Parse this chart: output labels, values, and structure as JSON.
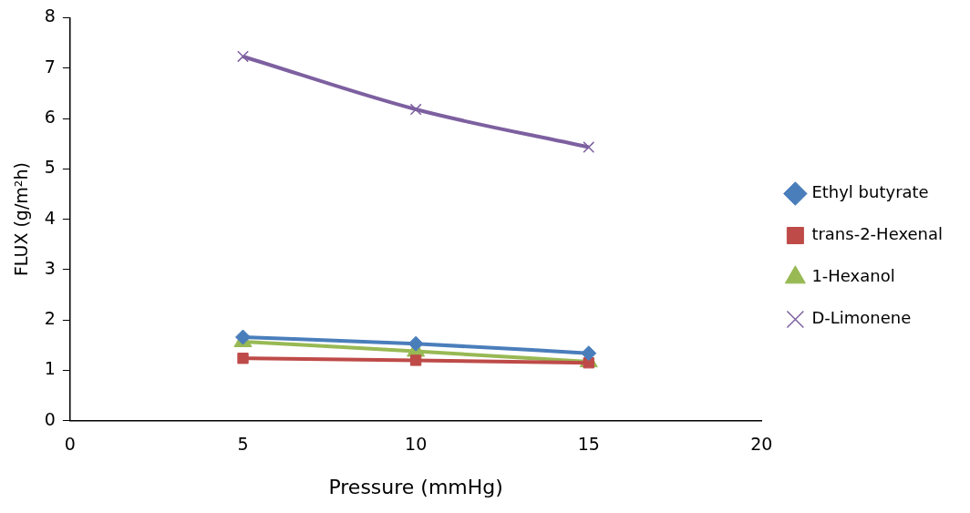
{
  "chart_data": {
    "type": "line",
    "xlabel": "Pressure (mmHg)",
    "ylabel": "FLUX (g/m²h)",
    "x": [
      5,
      10,
      15
    ],
    "xlim": [
      0,
      20
    ],
    "xticks": [
      0,
      5,
      10,
      15,
      20
    ],
    "ylim": [
      0,
      8
    ],
    "yticks": [
      0,
      1,
      2,
      3,
      4,
      5,
      6,
      7,
      8
    ],
    "grid": false,
    "legend": "right",
    "line_style": "solid",
    "series": [
      {
        "name": "Ethyl butyrate",
        "color": "#4a7ebb",
        "marker": "diamond",
        "values": [
          1.66,
          1.53,
          1.34
        ]
      },
      {
        "name": "trans-2-Hexenal",
        "color": "#be4b48",
        "marker": "square",
        "values": [
          1.24,
          1.2,
          1.15
        ]
      },
      {
        "name": "1-Hexanol",
        "color": "#98b954",
        "marker": "triangle",
        "values": [
          1.57,
          1.38,
          1.17
        ]
      },
      {
        "name": "D-Limonene",
        "color": "#7d60a0",
        "marker": "cross",
        "values": [
          7.23,
          6.18,
          5.43
        ]
      }
    ]
  }
}
